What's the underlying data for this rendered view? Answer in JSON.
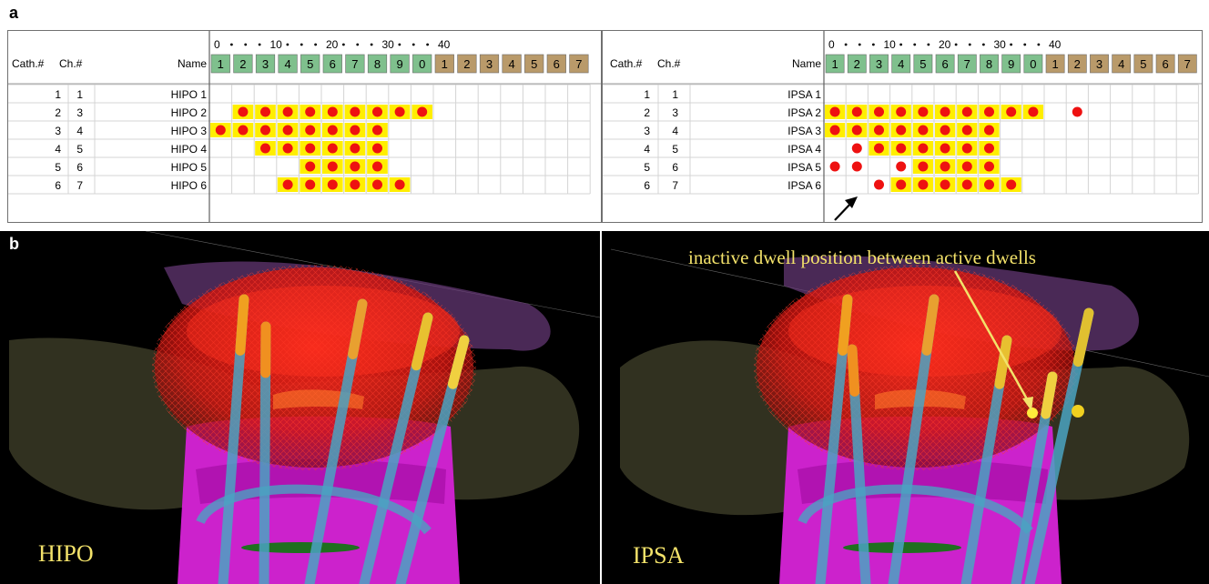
{
  "panel_a_label": "a",
  "panel_b_label": "b",
  "grids": [
    {
      "id": "hipo",
      "headers": {
        "cath": "Cath.#",
        "ch": "Ch.#",
        "name": "Name"
      },
      "scale_ticks": [
        "0",
        "10",
        "20",
        "30",
        "40"
      ],
      "position_labels": [
        "1",
        "2",
        "3",
        "4",
        "5",
        "6",
        "7",
        "8",
        "9",
        "0",
        "1",
        "2",
        "3",
        "4",
        "5",
        "6",
        "7"
      ],
      "rows": [
        {
          "cath": "1",
          "ch": "1",
          "name": "HIPO 1",
          "active": [],
          "inactive_dots": []
        },
        {
          "cath": "2",
          "ch": "3",
          "name": "HIPO 2",
          "active": [
            2,
            3,
            4,
            5,
            6,
            7,
            8,
            9,
            10
          ],
          "inactive_dots": []
        },
        {
          "cath": "3",
          "ch": "4",
          "name": "HIPO 3",
          "active": [
            1,
            2,
            3,
            4,
            5,
            6,
            7,
            8
          ],
          "inactive_dots": []
        },
        {
          "cath": "4",
          "ch": "5",
          "name": "HIPO 4",
          "active": [
            3,
            4,
            5,
            6,
            7,
            8
          ],
          "inactive_dots": []
        },
        {
          "cath": "5",
          "ch": "6",
          "name": "HIPO 5",
          "active": [
            5,
            6,
            7,
            8
          ],
          "inactive_dots": []
        },
        {
          "cath": "6",
          "ch": "7",
          "name": "HIPO 6",
          "active": [
            4,
            5,
            6,
            7,
            8,
            9
          ],
          "inactive_dots": []
        }
      ]
    },
    {
      "id": "ipsa",
      "headers": {
        "cath": "Cath.#",
        "ch": "Ch.#",
        "name": "Name"
      },
      "scale_ticks": [
        "0",
        "10",
        "20",
        "30",
        "40"
      ],
      "position_labels": [
        "1",
        "2",
        "3",
        "4",
        "5",
        "6",
        "7",
        "8",
        "9",
        "0",
        "1",
        "2",
        "3",
        "4",
        "5",
        "6",
        "7"
      ],
      "rows": [
        {
          "cath": "1",
          "ch": "1",
          "name": "IPSA 1",
          "active": [],
          "inactive_dots": []
        },
        {
          "cath": "2",
          "ch": "3",
          "name": "IPSA 2",
          "active": [
            1,
            2,
            3,
            4,
            5,
            6,
            7,
            8,
            9,
            10
          ],
          "inactive_dots": [
            12
          ]
        },
        {
          "cath": "3",
          "ch": "4",
          "name": "IPSA 3",
          "active": [
            1,
            2,
            3,
            4,
            5,
            6,
            7,
            8
          ],
          "inactive_dots": []
        },
        {
          "cath": "4",
          "ch": "5",
          "name": "IPSA 4",
          "active": [
            3,
            4,
            5,
            6,
            7,
            8
          ],
          "inactive_dots": [
            2
          ]
        },
        {
          "cath": "5",
          "ch": "6",
          "name": "IPSA 5",
          "active": [
            5,
            6,
            7,
            8
          ],
          "inactive_dots": [
            1,
            2,
            4
          ]
        },
        {
          "cath": "6",
          "ch": "7",
          "name": "IPSA 6",
          "active": [
            4,
            5,
            6,
            7,
            8,
            9
          ],
          "inactive_dots": [
            3
          ]
        }
      ]
    }
  ],
  "scenes": [
    {
      "id": "hipo",
      "label": "HIPO"
    },
    {
      "id": "ipsa",
      "label": "IPSA",
      "annotation": "inactive dwell position between active dwells"
    }
  ],
  "colors": {
    "active_cell": "#ffee00",
    "dwell_dot": "#ee1111",
    "header_green": "#7fc08d",
    "header_tan": "#b99a6a",
    "grid_line": "#d4d4d4",
    "annotation_text": "#f3e26a",
    "catheter": "#4aa3c2",
    "prostate_red": "#e0201c",
    "bladder_magenta": "#cc22cc"
  }
}
